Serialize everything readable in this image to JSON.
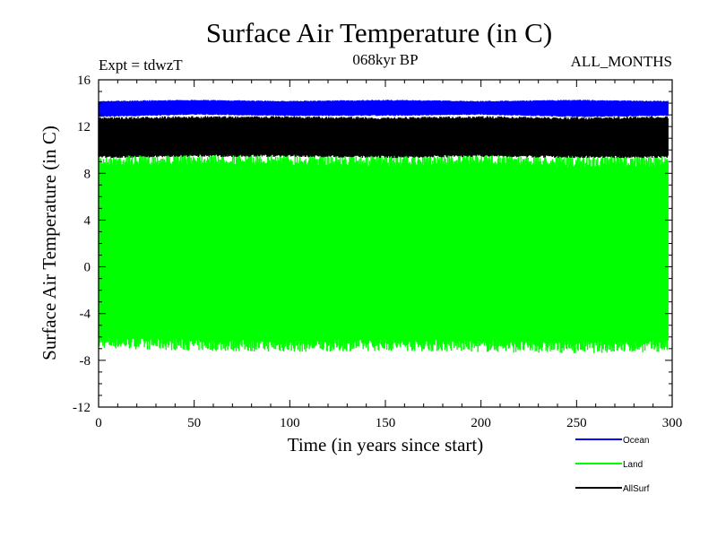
{
  "chart_data": {
    "type": "line",
    "title": "Surface Air Temperature (in C)",
    "subtitle_left": "Expt = tdwzT",
    "subtitle_center": "068kyr BP",
    "subtitle_right": "ALL_MONTHS",
    "xlabel": "Time (in years since start)",
    "ylabel": "Surface Air Temperature (in C)",
    "xlim": [
      0,
      300
    ],
    "ylim": [
      -12,
      16
    ],
    "xticks": [
      0,
      50,
      100,
      150,
      200,
      250,
      300
    ],
    "xtick_labels": [
      "0",
      "50",
      "100",
      "150",
      "200",
      "250",
      "300"
    ],
    "yticks": [
      16,
      12,
      8,
      4,
      0,
      -4,
      -8,
      -12
    ],
    "ytick_labels": [
      "16",
      "12",
      "8",
      "4",
      "0",
      "-4",
      "-8",
      "-12"
    ],
    "grid": false,
    "legend_position": "bottom-right",
    "series": [
      {
        "name": "Ocean",
        "color": "#0000ff",
        "band_min": [
          12.8,
          13.0,
          12.9,
          12.9,
          13.0,
          12.8,
          12.9
        ],
        "band_max": [
          14.2,
          14.3,
          14.2,
          14.3,
          14.2,
          14.3,
          14.2
        ]
      },
      {
        "name": "Land",
        "color": "#00ff00",
        "band_min": [
          -7.0,
          -7.2,
          -7.3,
          -7.2,
          -7.3,
          -7.4,
          -7.3
        ],
        "band_max": [
          9.6,
          9.8,
          9.7,
          9.6,
          9.8,
          9.5,
          9.6
        ]
      },
      {
        "name": "AllSurf",
        "color": "#000000",
        "band_min": [
          9.3,
          9.4,
          9.4,
          9.3,
          9.4,
          9.3,
          9.3
        ],
        "band_max": [
          12.8,
          12.9,
          12.9,
          12.8,
          12.9,
          12.8,
          12.9
        ]
      }
    ],
    "x_samples": [
      0,
      50,
      100,
      150,
      200,
      250,
      298
    ]
  }
}
